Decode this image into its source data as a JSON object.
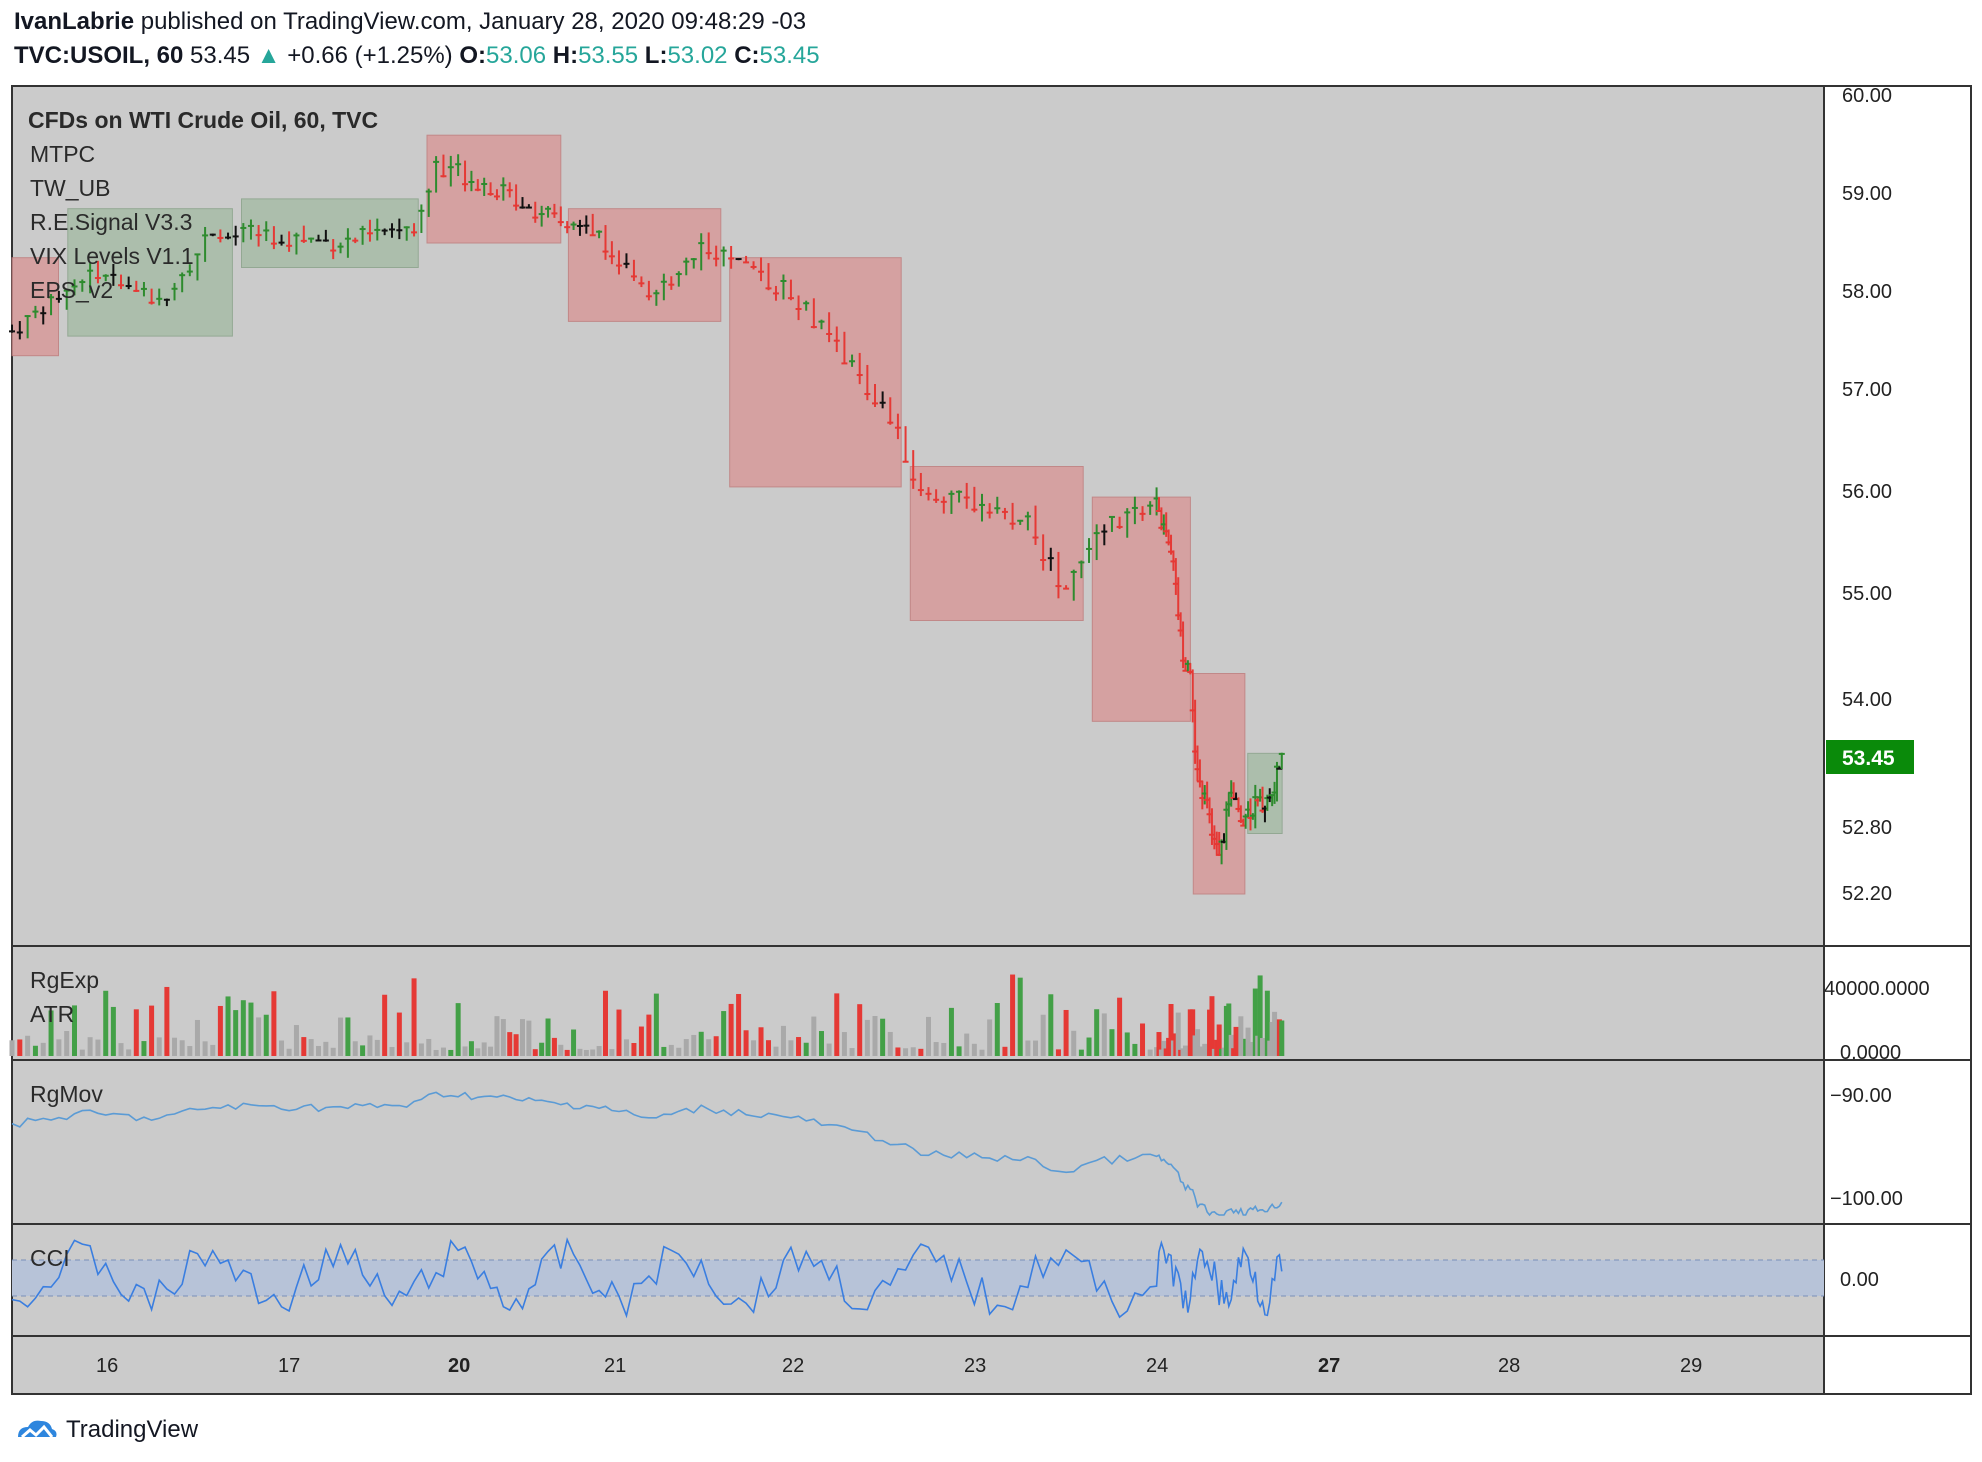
{
  "header": {
    "author": "IvanLabrie",
    "published_text": "published on TradingView.com, January 28, 2020 09:48:29 -03",
    "symbol": "TVC:USOIL, 60",
    "last": "53.45",
    "change": "+0.66 (+1.25%)",
    "o_label": "O:",
    "o_value": "53.06",
    "h_label": "H:",
    "h_value": "53.55",
    "l_label": "L:",
    "l_value": "53.02",
    "c_label": "C:",
    "c_value": "53.45",
    "up_arrow": "▲"
  },
  "legend": {
    "title": "CFDs on WTI Crude Oil, 60, TVC",
    "studies": [
      "MTPC",
      "TW_UB",
      "R.E.Signal V3.3",
      "VIX Levels V1.1",
      "EPS_v2"
    ]
  },
  "panes": {
    "volume_labels": [
      "RgExp",
      "ATR"
    ],
    "rgmov_label": "RgMov",
    "cci_label": "CCI"
  },
  "price_axis": {
    "ticks": [
      "60.00",
      "59.00",
      "58.00",
      "57.00",
      "56.00",
      "55.00",
      "54.00",
      "52.80",
      "52.20"
    ],
    "last_price_badge": "53.45",
    "volume_ticks": [
      "40000.0000",
      "0.0000"
    ],
    "rgmov_ticks": [
      "−90.00",
      "−100.00"
    ],
    "cci_ticks": [
      "0.00"
    ]
  },
  "time_axis": {
    "labels": [
      "16",
      "17",
      "20",
      "21",
      "22",
      "23",
      "24",
      "27",
      "28",
      "29"
    ],
    "bold": [
      "20",
      "27"
    ]
  },
  "colors": {
    "bull": "#2e8b2e",
    "bear": "#e53935",
    "neutral": "#111111",
    "bg": "#cbcbcb",
    "red_box": "#d79a9a",
    "green_box": "#a7bca7",
    "accent_badge": "#0a8a0a",
    "rgmov_line": "#5b9bd5",
    "cci_line": "#3a7ee0",
    "cci_band": "#b7c3d8"
  },
  "chart_data": {
    "type": "candlestick",
    "title": "CFDs on WTI Crude Oil, 60, TVC",
    "ylim": [
      51.9,
      60.1
    ],
    "x_labels": [
      "16",
      "17",
      "20",
      "21",
      "22",
      "23",
      "24",
      "27",
      "28",
      "29"
    ],
    "boxes": [
      {
        "color": "red",
        "from_day": 15.5,
        "to_day": 15.75,
        "high": 58.35,
        "low": 57.35
      },
      {
        "color": "green",
        "from_day": 15.8,
        "to_day": 16.7,
        "high": 58.85,
        "low": 57.55
      },
      {
        "color": "green",
        "from_day": 16.75,
        "to_day": 17.75,
        "high": 58.95,
        "low": 58.25
      },
      {
        "color": "red",
        "from_day": 17.8,
        "to_day": 18.65,
        "high": 59.6,
        "low": 58.5
      },
      {
        "color": "red",
        "from_day": 18.7,
        "to_day": 19.6,
        "high": 58.85,
        "low": 57.7
      },
      {
        "color": "red",
        "from_day": 19.65,
        "to_day": 20.6,
        "high": 58.35,
        "low": 56.05
      },
      {
        "color": "red",
        "from_day": 20.65,
        "to_day": 21.6,
        "high": 56.25,
        "low": 54.75
      },
      {
        "color": "red",
        "from_day": 21.65,
        "to_day": 22.6,
        "high": 55.95,
        "low": 53.8
      },
      {
        "color": "red",
        "from_day": 22.65,
        "to_day": 23.55,
        "high": 54.25,
        "low": 52.2
      },
      {
        "color": "green",
        "from_day": 23.6,
        "to_day": 24.2,
        "high": 53.5,
        "low": 52.75
      }
    ],
    "last_price": 53.45
  }
}
